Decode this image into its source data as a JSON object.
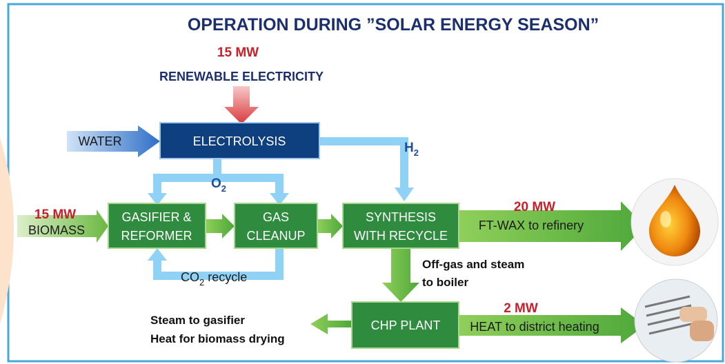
{
  "title": "OPERATION DURING ”SOLAR ENERGY SEASON”",
  "electricity": {
    "amount": "15 MW",
    "label": "RENEWABLE ELECTRICITY"
  },
  "water": "WATER",
  "biomass": {
    "amount": "15 MW",
    "label": "BIOMASS"
  },
  "nodes": [
    {
      "lines": [
        "ELECTROLYSIS"
      ]
    },
    {
      "lines": [
        "GASIFIER &",
        "REFORMER"
      ]
    },
    {
      "lines": [
        "GAS",
        "CLEANUP"
      ]
    },
    {
      "lines": [
        "SYNTHESIS",
        "WITH RECYCLE"
      ]
    },
    {
      "lines": [
        "CHP PLANT"
      ]
    }
  ],
  "flows": {
    "h2": {
      "text": "H",
      "sub": "2"
    },
    "o2": {
      "text": "O",
      "sub": "2"
    },
    "co2": {
      "text": "CO",
      "sub": "2",
      "rest": " recycle"
    },
    "offgas": [
      "Off-gas and steam",
      "to boiler"
    ],
    "steam": [
      "Steam to gasifier",
      "Heat for biomass drying"
    ]
  },
  "outputs": [
    {
      "amount": "20 MW",
      "label": "FT-WAX to refinery"
    },
    {
      "amount": "2 MW",
      "label": "HEAT to district heating"
    }
  ]
}
